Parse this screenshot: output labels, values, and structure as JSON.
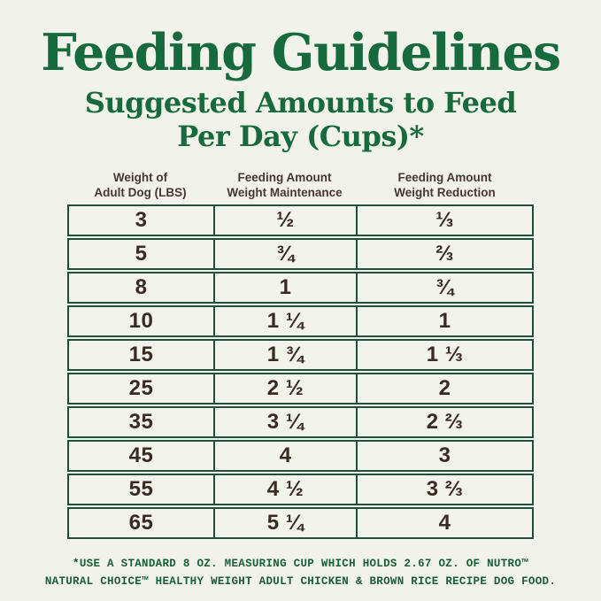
{
  "page": {
    "background_color": "#f1f2e9",
    "accent_green": "#176a3e",
    "table_border_green": "#20503c",
    "cell_text_color": "#3a2a24",
    "title": "Feeding Guidelines",
    "subtitle_line1": "Suggested Amounts to Feed",
    "subtitle_line2": "Per Day (Cups)*"
  },
  "table": {
    "headers": [
      {
        "line1": "Weight of",
        "line2": "Adult Dog (LBS)"
      },
      {
        "line1": "Feeding Amount",
        "line2": "Weight Maintenance"
      },
      {
        "line1": "Feeding Amount",
        "line2": "Weight Reduction"
      }
    ],
    "rows": [
      {
        "weight": "3",
        "maintenance": "½",
        "reduction": "⅓"
      },
      {
        "weight": "5",
        "maintenance": "¾",
        "reduction": "⅔"
      },
      {
        "weight": "8",
        "maintenance": "1",
        "reduction": "¾"
      },
      {
        "weight": "10",
        "maintenance": "1 ¼",
        "reduction": "1"
      },
      {
        "weight": "15",
        "maintenance": "1 ¾",
        "reduction": "1 ⅓"
      },
      {
        "weight": "25",
        "maintenance": "2 ½",
        "reduction": "2"
      },
      {
        "weight": "35",
        "maintenance": "3 ¼",
        "reduction": "2 ⅔"
      },
      {
        "weight": "45",
        "maintenance": "4",
        "reduction": "3"
      },
      {
        "weight": "55",
        "maintenance": "4 ½",
        "reduction": "3 ⅔"
      },
      {
        "weight": "65",
        "maintenance": "5 ¼",
        "reduction": "4"
      }
    ]
  },
  "footnote": {
    "line1": "*USE A STANDARD 8 OZ. MEASURING CUP WHICH HOLDS 2.67 OZ. OF NUTRO™",
    "line2": "NATURAL CHOICE™ HEALTHY WEIGHT ADULT CHICKEN & BROWN RICE RECIPE DOG FOOD."
  }
}
